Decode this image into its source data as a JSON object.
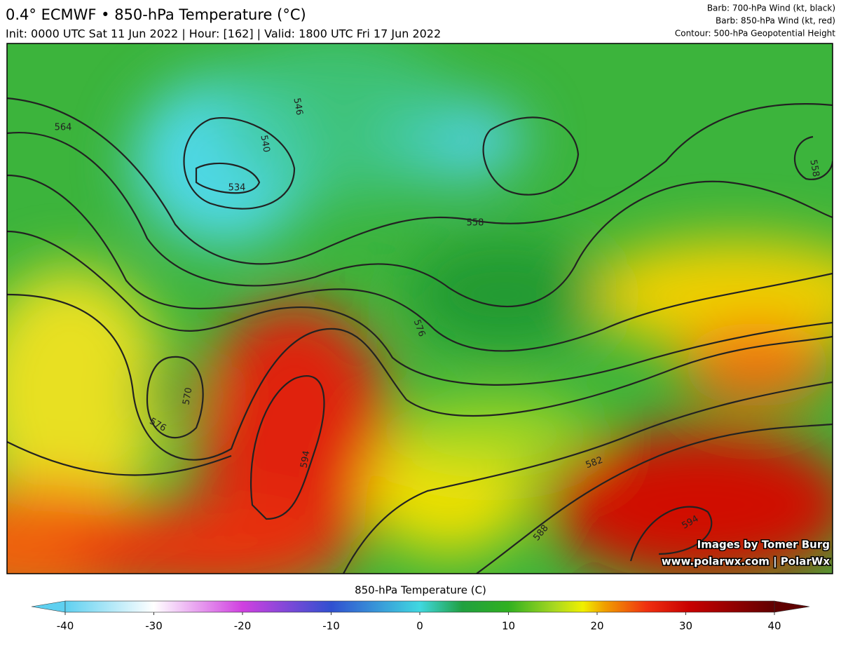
{
  "header": {
    "title": "0.4° ECMWF • 850-hPa Temperature (°C)",
    "subtitle": "Init: 0000 UTC Sat 11 Jun 2022 | Hour: [162] | Valid: 1800 UTC Fri 17 Jun 2022",
    "notes": [
      "Barb: 700-hPa Wind (kt, black)",
      "Barb: 850-hPa Wind (kt, red)",
      "Contour: 500-hPa Geopotential Height"
    ]
  },
  "map": {
    "contour_labels": [
      564,
      546,
      540,
      534,
      558,
      558,
      570,
      576,
      576,
      594,
      582,
      588,
      594
    ],
    "credits": [
      "Images by Tomer Burg",
      "www.polarwx.com | PolarWx"
    ]
  },
  "colorbar": {
    "title": "850-hPa Temperature (C)",
    "range": [
      -40,
      40
    ],
    "ticks": [
      -40,
      -30,
      -20,
      -10,
      0,
      10,
      20,
      30,
      40
    ]
  }
}
